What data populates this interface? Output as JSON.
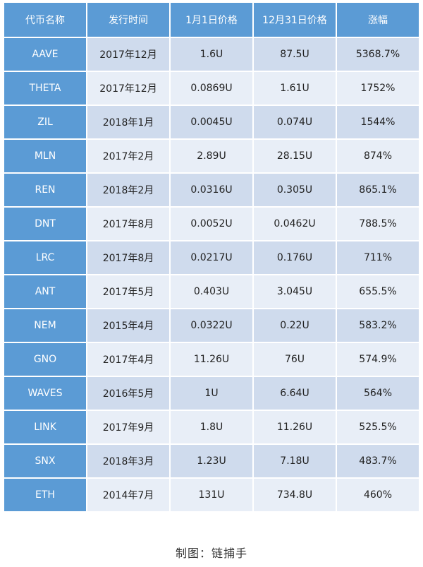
{
  "table": {
    "headers": [
      "代币名称",
      "发行时间",
      "1月1日价格",
      "12月31日价格",
      "涨幅"
    ],
    "rows": [
      {
        "name": "AAVE",
        "issue": "2017年12月",
        "jan1": "1.6U",
        "dec31": "87.5U",
        "gain": "5368.7%"
      },
      {
        "name": "THETA",
        "issue": "2017年12月",
        "jan1": "0.0869U",
        "dec31": "1.61U",
        "gain": "1752%"
      },
      {
        "name": "ZIL",
        "issue": "2018年1月",
        "jan1": "0.0045U",
        "dec31": "0.074U",
        "gain": "1544%"
      },
      {
        "name": "MLN",
        "issue": "2017年2月",
        "jan1": "2.89U",
        "dec31": "28.15U",
        "gain": "874%"
      },
      {
        "name": "REN",
        "issue": "2018年2月",
        "jan1": "0.0316U",
        "dec31": "0.305U",
        "gain": "865.1%"
      },
      {
        "name": "DNT",
        "issue": "2017年8月",
        "jan1": "0.0052U",
        "dec31": "0.0462U",
        "gain": "788.5%"
      },
      {
        "name": "LRC",
        "issue": "2017年8月",
        "jan1": "0.0217U",
        "dec31": "0.176U",
        "gain": "711%"
      },
      {
        "name": "ANT",
        "issue": "2017年5月",
        "jan1": "0.403U",
        "dec31": "3.045U",
        "gain": "655.5%"
      },
      {
        "name": "NEM",
        "issue": "2015年4月",
        "jan1": "0.0322U",
        "dec31": "0.22U",
        "gain": "583.2%"
      },
      {
        "name": "GNO",
        "issue": "2017年4月",
        "jan1": "11.26U",
        "dec31": "76U",
        "gain": "574.9%"
      },
      {
        "name": "WAVES",
        "issue": "2016年5月",
        "jan1": "1U",
        "dec31": "6.64U",
        "gain": "564%"
      },
      {
        "name": "LINK",
        "issue": "2017年9月",
        "jan1": "1.8U",
        "dec31": "11.26U",
        "gain": "525.5%"
      },
      {
        "name": "SNX",
        "issue": "2018年3月",
        "jan1": "1.23U",
        "dec31": "7.18U",
        "gain": "483.7%"
      },
      {
        "name": "ETH",
        "issue": "2014年7月",
        "jan1": "131U",
        "dec31": "734.8U",
        "gain": "460%"
      }
    ]
  },
  "caption": "制图：链捕手",
  "colors": {
    "header_blue": "#5b9bd5",
    "row_light": "#cfdbed",
    "row_lighter": "#e8eef7"
  }
}
